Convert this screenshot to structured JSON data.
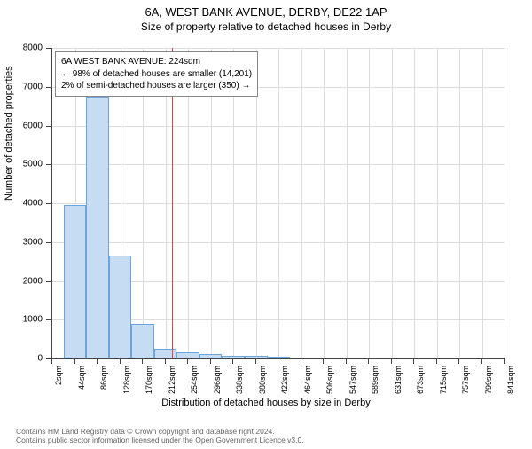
{
  "title_main": "6A, WEST BANK AVENUE, DERBY, DE22 1AP",
  "title_sub": "Size of property relative to detached houses in Derby",
  "chart": {
    "type": "histogram",
    "ylabel": "Number of detached properties",
    "xlabel": "Distribution of detached houses by size in Derby",
    "ylim_max": 8000,
    "ytick_step": 1000,
    "yticks": [
      "0",
      "1000",
      "2000",
      "3000",
      "4000",
      "5000",
      "6000",
      "7000",
      "8000"
    ],
    "xticks": [
      "2sqm",
      "44sqm",
      "86sqm",
      "128sqm",
      "170sqm",
      "212sqm",
      "254sqm",
      "296sqm",
      "338sqm",
      "380sqm",
      "422sqm",
      "464sqm",
      "506sqm",
      "547sqm",
      "589sqm",
      "631sqm",
      "673sqm",
      "715sqm",
      "757sqm",
      "799sqm",
      "841sqm"
    ],
    "x_min": 2,
    "x_max": 841,
    "reference_value": 224,
    "bars": [
      {
        "x_sqm": 44,
        "value": 3950
      },
      {
        "x_sqm": 86,
        "value": 6750
      },
      {
        "x_sqm": 128,
        "value": 2650
      },
      {
        "x_sqm": 170,
        "value": 900
      },
      {
        "x_sqm": 212,
        "value": 260
      },
      {
        "x_sqm": 254,
        "value": 150
      },
      {
        "x_sqm": 296,
        "value": 120
      },
      {
        "x_sqm": 338,
        "value": 80
      },
      {
        "x_sqm": 380,
        "value": 60
      },
      {
        "x_sqm": 422,
        "value": 40
      }
    ],
    "bar_fill": "#c5dcf2",
    "bar_border": "#6aa6dd",
    "grid_color": "#dddddd",
    "reference_color": "#d94545",
    "background_color": "#ffffff"
  },
  "info_box": {
    "line1": "6A WEST BANK AVENUE: 224sqm",
    "line2": "← 98% of detached houses are smaller (14,201)",
    "line3": "2% of semi-detached houses are larger (350) →"
  },
  "footer": {
    "line1": "Contains HM Land Registry data © Crown copyright and database right 2024.",
    "line2": "Contains public sector information licensed under the Open Government Licence v3.0."
  }
}
